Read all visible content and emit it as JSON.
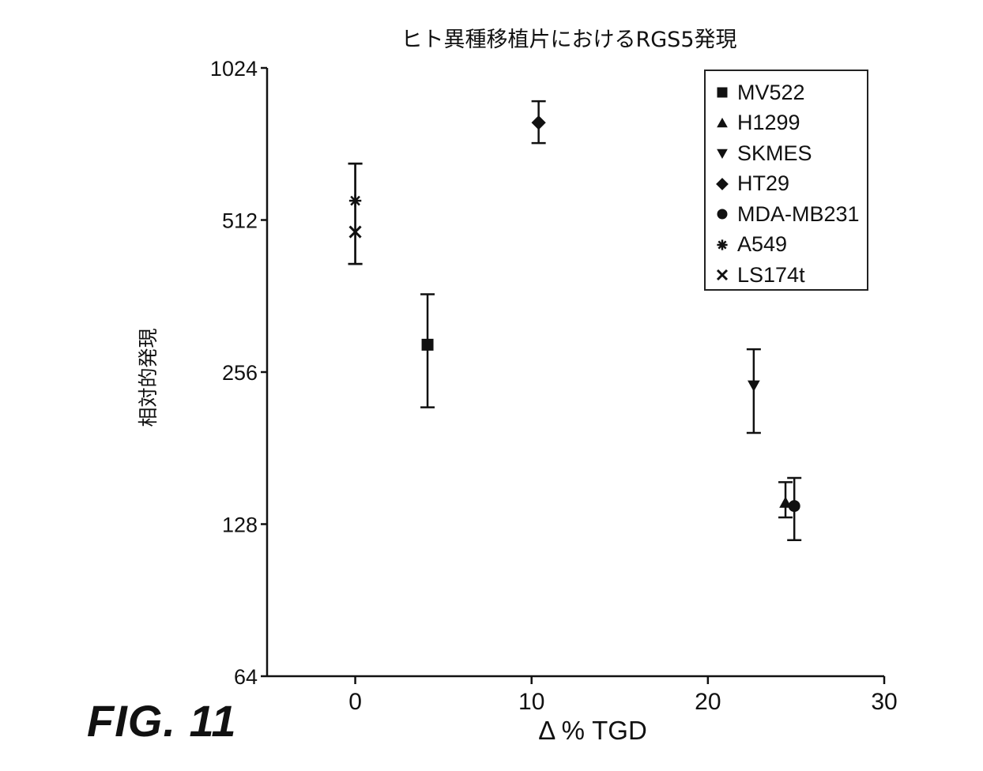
{
  "chart_data": {
    "type": "scatter",
    "title": "ヒト異種移植片におけるRGS5発現",
    "xlabel": "Δ % TGD",
    "ylabel": "相対的発現",
    "xlim": [
      -5,
      30
    ],
    "ylim": [
      64,
      1024
    ],
    "yscale": "log2",
    "xticks": [
      0,
      10,
      20,
      30
    ],
    "yticks": [
      64,
      128,
      256,
      512,
      1024
    ],
    "grid": false,
    "legend_position": "upper right",
    "series": [
      {
        "name": "MV522",
        "marker": "square",
        "x": 4.1,
        "y": 290,
        "err_low": 218,
        "err_high": 365
      },
      {
        "name": "H1299",
        "marker": "triangle-up",
        "x": 24.4,
        "y": 141,
        "err_low": 132,
        "err_high": 155
      },
      {
        "name": "SKMES",
        "marker": "triangle-down",
        "x": 22.6,
        "y": 241,
        "err_low": 194,
        "err_high": 284
      },
      {
        "name": "HT29",
        "marker": "diamond",
        "x": 10.4,
        "y": 798,
        "err_low": 727,
        "err_high": 880
      },
      {
        "name": "MDA-MB231",
        "marker": "circle",
        "x": 24.9,
        "y": 139,
        "err_low": 119,
        "err_high": 158
      },
      {
        "name": "A549",
        "marker": "asterisk",
        "x": 0,
        "y": 559,
        "err_low": 419,
        "err_high": 662
      },
      {
        "name": "LS174t",
        "marker": "x",
        "x": 0,
        "y": 485,
        "err_low": 419,
        "err_high": 662
      }
    ]
  },
  "figure_label": "FIG. 11",
  "colors": {
    "ink": "#111111",
    "background": "#ffffff"
  }
}
